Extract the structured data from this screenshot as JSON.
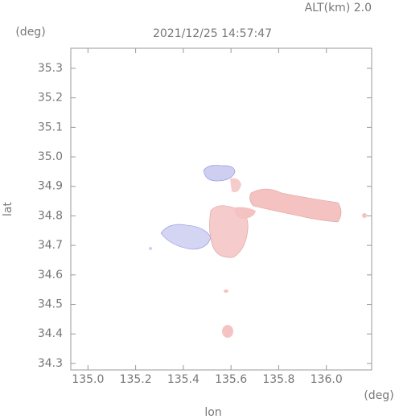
{
  "chart_data": {
    "type": "map",
    "title": "2021/12/25 14:57:47",
    "subtitle": "ALT(km) 2.0",
    "x_label": "lon",
    "y_label": "lat",
    "x_unit": "(deg)",
    "y_unit": "(deg)",
    "xlim": [
      134.928,
      136.19
    ],
    "ylim": [
      34.278,
      35.368
    ],
    "xticks": [
      {
        "value": 135.0,
        "label": "135.0"
      },
      135.2,
      135.4,
      135.6,
      135.8,
      {
        "value": 136.0,
        "label": "136.0"
      }
    ],
    "yticks": [
      34.3,
      34.4,
      34.5,
      34.6,
      34.7,
      34.8,
      34.9,
      {
        "value": 35.0,
        "label": "35.0"
      },
      35.1,
      35.2,
      35.3
    ],
    "frame_color": "#999999"
  }
}
